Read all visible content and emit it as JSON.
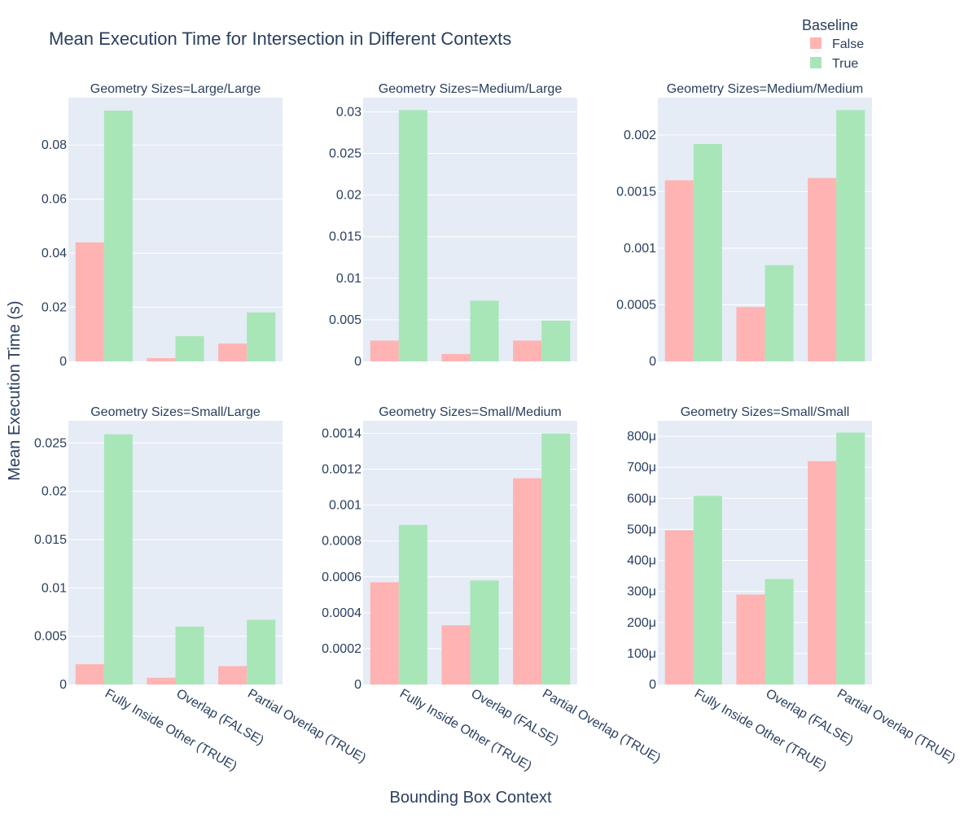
{
  "title": "Mean Execution Time for Intersection in Different Contexts",
  "legend": {
    "title": "Baseline",
    "placement": "top-right",
    "items": [
      {
        "label": "False",
        "color": "#FFB3B3"
      },
      {
        "label": "True",
        "color": "#A8E6B8"
      }
    ]
  },
  "colors": {
    "plot_background": "#E5ECF6",
    "grid": "#ffffff",
    "text": "#2a3f5f"
  },
  "chart_data": {
    "type": "bar",
    "xlabel": "Bounding Box Context",
    "ylabel": "Mean Execution Time (s)",
    "categories": [
      "Fully Inside Other (TRUE)",
      "Overlap (FALSE)",
      "Partial Overlap (TRUE)"
    ],
    "grid": true,
    "facets": [
      {
        "title": "Geometry Sizes=Large/Large",
        "ylim": [
          0,
          0.0975
        ],
        "ytick_values": [
          0,
          0.02,
          0.04,
          0.06,
          0.08
        ],
        "ytick_labels": [
          "0",
          "0.02",
          "0.04",
          "0.06",
          "0.08"
        ],
        "series": [
          {
            "name": "False",
            "values": [
              0.044,
              0.0012,
              0.0066
            ]
          },
          {
            "name": "True",
            "values": [
              0.0927,
              0.0093,
              0.0181
            ]
          }
        ]
      },
      {
        "title": "Geometry Sizes=Medium/Large",
        "ylim": [
          0,
          0.0317
        ],
        "ytick_values": [
          0,
          0.005,
          0.01,
          0.015,
          0.02,
          0.025,
          0.03
        ],
        "ytick_labels": [
          "0",
          "0.005",
          "0.01",
          "0.015",
          "0.02",
          "0.025",
          "0.03"
        ],
        "series": [
          {
            "name": "False",
            "values": [
              0.0025,
              0.0009,
              0.0025
            ]
          },
          {
            "name": "True",
            "values": [
              0.0302,
              0.0073,
              0.0049
            ]
          }
        ]
      },
      {
        "title": "Geometry Sizes=Medium/Medium",
        "ylim": [
          0,
          0.00233
        ],
        "ytick_values": [
          0,
          0.0005,
          0.001,
          0.0015,
          0.002
        ],
        "ytick_labels": [
          "0",
          "0.0005",
          "0.001",
          "0.0015",
          "0.002"
        ],
        "series": [
          {
            "name": "False",
            "values": [
              0.0016,
              0.00048,
              0.00162
            ]
          },
          {
            "name": "True",
            "values": [
              0.00192,
              0.00085,
              0.00222
            ]
          }
        ]
      },
      {
        "title": "Geometry Sizes=Small/Large",
        "ylim": [
          0,
          0.0273
        ],
        "ytick_values": [
          0,
          0.005,
          0.01,
          0.015,
          0.02,
          0.025
        ],
        "ytick_labels": [
          "0",
          "0.005",
          "0.01",
          "0.015",
          "0.02",
          "0.025"
        ],
        "series": [
          {
            "name": "False",
            "values": [
              0.0021,
              0.0007,
              0.0019
            ]
          },
          {
            "name": "True",
            "values": [
              0.0259,
              0.006,
              0.0067
            ]
          }
        ]
      },
      {
        "title": "Geometry Sizes=Small/Medium",
        "ylim": [
          0,
          0.00147
        ],
        "ytick_values": [
          0,
          0.0002,
          0.0004,
          0.0006,
          0.0008,
          0.001,
          0.0012,
          0.0014
        ],
        "ytick_labels": [
          "0",
          "0.0002",
          "0.0004",
          "0.0006",
          "0.0008",
          "0.001",
          "0.0012",
          "0.0014"
        ],
        "series": [
          {
            "name": "False",
            "values": [
              0.00057,
              0.00033,
              0.00115
            ]
          },
          {
            "name": "True",
            "values": [
              0.00089,
              0.00058,
              0.0014
            ]
          }
        ]
      },
      {
        "title": "Geometry Sizes=Small/Small",
        "ylim": [
          0,
          0.00085
        ],
        "ytick_values": [
          0,
          0.0001,
          0.0002,
          0.0003,
          0.0004,
          0.0005,
          0.0006,
          0.0007,
          0.0008
        ],
        "ytick_labels": [
          "0",
          "100μ",
          "200μ",
          "300μ",
          "400μ",
          "500μ",
          "600μ",
          "700μ",
          "800μ"
        ],
        "series": [
          {
            "name": "False",
            "values": [
              0.000497,
              0.00029,
              0.00072
            ]
          },
          {
            "name": "True",
            "values": [
              0.000608,
              0.00034,
              0.000812
            ]
          }
        ]
      }
    ]
  }
}
